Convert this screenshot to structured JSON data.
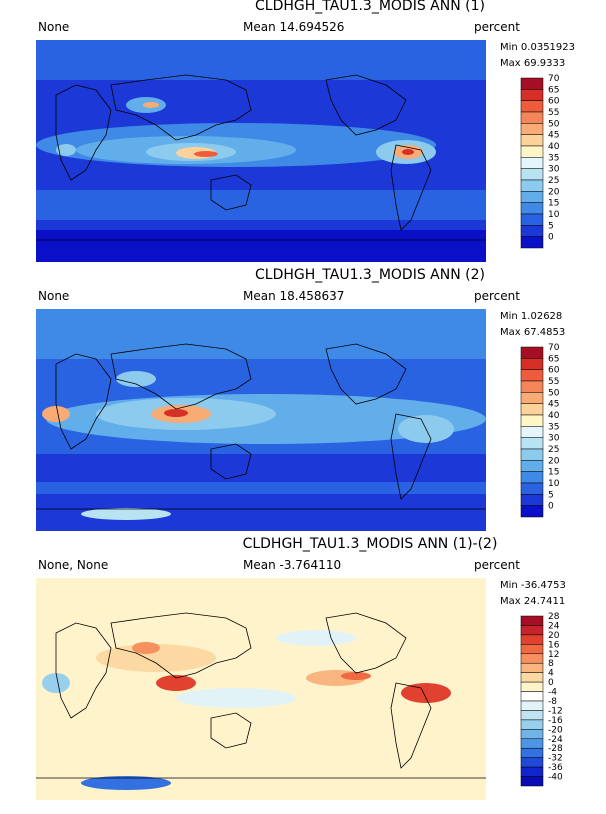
{
  "panels": [
    {
      "title": "CLDHGH_TAU1.3_MODIS ANN (1)",
      "case": "None",
      "mean": "Mean 14.694526",
      "units": "percent",
      "min": "Min 0.0351923",
      "max": "Max 69.9333",
      "colorbar": {
        "labels": [
          "70",
          "65",
          "60",
          "55",
          "50",
          "45",
          "40",
          "35",
          "30",
          "25",
          "20",
          "15",
          "10",
          "5",
          "0"
        ],
        "colors": [
          "#a50f26",
          "#d52f27",
          "#ee5c3c",
          "#f4865a",
          "#f8ab74",
          "#fcd29a",
          "#fff6c5",
          "#e4f5fb",
          "#b8e3f3",
          "#8ccaee",
          "#62aeea",
          "#3f8ae6",
          "#2a63e1",
          "#1c38d6",
          "#0a10c8"
        ]
      }
    },
    {
      "title": "CLDHGH_TAU1.3_MODIS ANN (2)",
      "case": "None",
      "mean": "Mean 18.458637",
      "units": "percent",
      "min": "Min 1.02628",
      "max": "Max 67.4853",
      "colorbar": {
        "labels": [
          "70",
          "65",
          "60",
          "55",
          "50",
          "45",
          "40",
          "35",
          "30",
          "25",
          "20",
          "15",
          "10",
          "5",
          "0"
        ],
        "colors": [
          "#a50f26",
          "#d52f27",
          "#ee5c3c",
          "#f4865a",
          "#f8ab74",
          "#fcd29a",
          "#fff6c5",
          "#e4f5fb",
          "#b8e3f3",
          "#8ccaee",
          "#62aeea",
          "#3f8ae6",
          "#2a63e1",
          "#1c38d6",
          "#0a10c8"
        ]
      }
    },
    {
      "title": "CLDHGH_TAU1.3_MODIS ANN (1)-(2)",
      "case": "None, None",
      "mean": "Mean -3.764110",
      "units": "percent",
      "min": "Min -36.4753",
      "max": "Max 24.7411",
      "colorbar": {
        "labels": [
          "28",
          "24",
          "20",
          "16",
          "12",
          "8",
          "4",
          "0",
          "-4",
          "-8",
          "-12",
          "-16",
          "-20",
          "-24",
          "-28",
          "-32",
          "-36",
          "-40"
        ],
        "colors": [
          "#a50f26",
          "#c7232b",
          "#e0422f",
          "#ef6a43",
          "#f6905f",
          "#f9b57f",
          "#fcd8a3",
          "#fff3cc",
          "#ffffff",
          "#e2f3f8",
          "#c0e4f2",
          "#98cfec",
          "#71b5e8",
          "#4e96e4",
          "#3371e0",
          "#2149d9",
          "#1224cd",
          "#0a0cb5"
        ]
      }
    }
  ]
}
